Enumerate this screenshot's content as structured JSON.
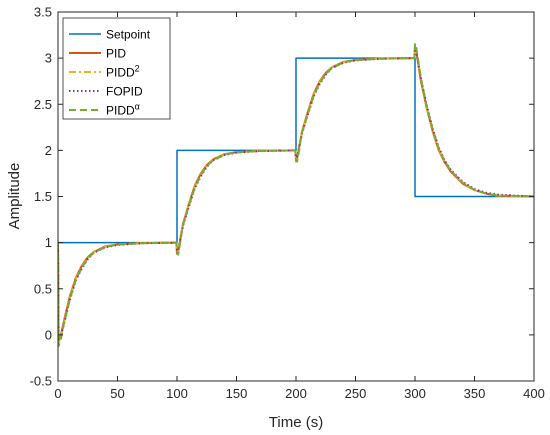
{
  "chart_data": {
    "type": "line",
    "xlabel": "Time (s)",
    "ylabel": "Amplitude",
    "xlim": [
      0,
      400
    ],
    "ylim": [
      -0.5,
      3.5
    ],
    "xticks": [
      0,
      50,
      100,
      150,
      200,
      250,
      300,
      350,
      400
    ],
    "yticks": [
      -0.5,
      0,
      0.5,
      1,
      1.5,
      2,
      2.5,
      3,
      3.5
    ],
    "xtick_labels": [
      "0",
      "50",
      "100",
      "150",
      "200",
      "250",
      "300",
      "350",
      "400"
    ],
    "ytick_labels": [
      "-0.5",
      "0",
      "0.5",
      "1",
      "1.5",
      "2",
      "2.5",
      "3",
      "3.5"
    ],
    "grid": false,
    "legend_position": "top-left",
    "series": [
      {
        "name": "Setpoint",
        "legend_main": "Setpoint",
        "legend_sup": "",
        "color": "#0072BD",
        "dash": "solid",
        "points": [
          [
            0,
            0
          ],
          [
            0,
            1
          ],
          [
            100,
            1
          ],
          [
            100,
            2
          ],
          [
            200,
            2
          ],
          [
            200,
            3
          ],
          [
            300,
            3
          ],
          [
            300,
            1.5
          ],
          [
            400,
            1.5
          ]
        ]
      },
      {
        "name": "PID",
        "legend_main": "PID",
        "legend_sup": "",
        "color": "#D95319",
        "dash": "solid",
        "points": [
          [
            0,
            1
          ],
          [
            0.5,
            -0.05
          ],
          [
            2,
            -0.03
          ],
          [
            5,
            0.15
          ],
          [
            10,
            0.42
          ],
          [
            15,
            0.62
          ],
          [
            20,
            0.75
          ],
          [
            25,
            0.84
          ],
          [
            30,
            0.9
          ],
          [
            40,
            0.96
          ],
          [
            50,
            0.98
          ],
          [
            70,
            0.995
          ],
          [
            99.5,
            1.0
          ],
          [
            100,
            0.88
          ],
          [
            101,
            0.9
          ],
          [
            105,
            1.2
          ],
          [
            110,
            1.42
          ],
          [
            115,
            1.62
          ],
          [
            120,
            1.75
          ],
          [
            125,
            1.84
          ],
          [
            130,
            1.9
          ],
          [
            140,
            1.96
          ],
          [
            150,
            1.98
          ],
          [
            170,
            1.995
          ],
          [
            199.5,
            2.0
          ],
          [
            200,
            1.9
          ],
          [
            201,
            1.92
          ],
          [
            205,
            2.2
          ],
          [
            210,
            2.42
          ],
          [
            215,
            2.62
          ],
          [
            220,
            2.75
          ],
          [
            225,
            2.84
          ],
          [
            230,
            2.9
          ],
          [
            240,
            2.96
          ],
          [
            250,
            2.98
          ],
          [
            270,
            2.995
          ],
          [
            299.5,
            3.0
          ],
          [
            300,
            3.12
          ],
          [
            301,
            3.08
          ],
          [
            305,
            2.75
          ],
          [
            310,
            2.45
          ],
          [
            315,
            2.2
          ],
          [
            320,
            2.0
          ],
          [
            325,
            1.87
          ],
          [
            330,
            1.77
          ],
          [
            340,
            1.64
          ],
          [
            350,
            1.57
          ],
          [
            360,
            1.53
          ],
          [
            370,
            1.51
          ],
          [
            400,
            1.5
          ]
        ]
      },
      {
        "name": "PIDD2",
        "legend_main": "PIDD",
        "legend_sup": "2",
        "color": "#EDB120",
        "dash": "dashdot",
        "points": [
          [
            0,
            1
          ],
          [
            0.5,
            -0.08
          ],
          [
            2,
            -0.05
          ],
          [
            5,
            0.13
          ],
          [
            10,
            0.4
          ],
          [
            15,
            0.61
          ],
          [
            20,
            0.74
          ],
          [
            25,
            0.83
          ],
          [
            30,
            0.9
          ],
          [
            40,
            0.955
          ],
          [
            50,
            0.98
          ],
          [
            70,
            0.995
          ],
          [
            99.5,
            1.0
          ],
          [
            100,
            0.9
          ],
          [
            101,
            0.88
          ],
          [
            105,
            1.19
          ],
          [
            110,
            1.41
          ],
          [
            115,
            1.61
          ],
          [
            120,
            1.74
          ],
          [
            125,
            1.83
          ],
          [
            130,
            1.9
          ],
          [
            140,
            1.955
          ],
          [
            150,
            1.98
          ],
          [
            170,
            1.995
          ],
          [
            199.5,
            2.0
          ],
          [
            200,
            1.9
          ],
          [
            201,
            1.9
          ],
          [
            205,
            2.19
          ],
          [
            210,
            2.41
          ],
          [
            215,
            2.61
          ],
          [
            220,
            2.74
          ],
          [
            225,
            2.83
          ],
          [
            230,
            2.9
          ],
          [
            240,
            2.955
          ],
          [
            250,
            2.98
          ],
          [
            270,
            2.995
          ],
          [
            299.5,
            3.0
          ],
          [
            300,
            3.14
          ],
          [
            301,
            3.1
          ],
          [
            305,
            2.77
          ],
          [
            310,
            2.46
          ],
          [
            315,
            2.21
          ],
          [
            320,
            2.01
          ],
          [
            325,
            1.88
          ],
          [
            330,
            1.78
          ],
          [
            340,
            1.65
          ],
          [
            350,
            1.57
          ],
          [
            360,
            1.53
          ],
          [
            370,
            1.51
          ],
          [
            400,
            1.5
          ]
        ]
      },
      {
        "name": "FOPID",
        "legend_main": "FOPID",
        "legend_sup": "",
        "color": "#7E2F8E",
        "dash": "dotted",
        "points": [
          [
            0,
            1
          ],
          [
            0.5,
            -0.06
          ],
          [
            2,
            -0.04
          ],
          [
            5,
            0.12
          ],
          [
            10,
            0.38
          ],
          [
            15,
            0.59
          ],
          [
            20,
            0.72
          ],
          [
            25,
            0.82
          ],
          [
            30,
            0.89
          ],
          [
            40,
            0.95
          ],
          [
            50,
            0.975
          ],
          [
            70,
            0.993
          ],
          [
            99.5,
            1.0
          ],
          [
            100,
            0.92
          ],
          [
            101,
            0.92
          ],
          [
            105,
            1.18
          ],
          [
            110,
            1.39
          ],
          [
            115,
            1.59
          ],
          [
            120,
            1.72
          ],
          [
            125,
            1.82
          ],
          [
            130,
            1.89
          ],
          [
            140,
            1.95
          ],
          [
            150,
            1.975
          ],
          [
            170,
            1.993
          ],
          [
            199.5,
            2.0
          ],
          [
            200,
            1.92
          ],
          [
            201,
            1.93
          ],
          [
            205,
            2.18
          ],
          [
            210,
            2.39
          ],
          [
            215,
            2.59
          ],
          [
            220,
            2.72
          ],
          [
            225,
            2.82
          ],
          [
            230,
            2.89
          ],
          [
            240,
            2.95
          ],
          [
            250,
            2.975
          ],
          [
            270,
            2.993
          ],
          [
            299.5,
            3.0
          ],
          [
            300,
            3.1
          ],
          [
            301,
            3.07
          ],
          [
            305,
            2.78
          ],
          [
            310,
            2.48
          ],
          [
            315,
            2.23
          ],
          [
            320,
            2.03
          ],
          [
            325,
            1.89
          ],
          [
            330,
            1.79
          ],
          [
            340,
            1.66
          ],
          [
            350,
            1.58
          ],
          [
            360,
            1.54
          ],
          [
            370,
            1.52
          ],
          [
            400,
            1.5
          ]
        ]
      },
      {
        "name": "PIDDα",
        "legend_main": "PIDD",
        "legend_sup": "α",
        "color": "#77AC30",
        "dash": "dashed",
        "points": [
          [
            0,
            1
          ],
          [
            0.5,
            -0.12
          ],
          [
            2,
            -0.07
          ],
          [
            5,
            0.12
          ],
          [
            10,
            0.39
          ],
          [
            15,
            0.6
          ],
          [
            20,
            0.73
          ],
          [
            25,
            0.83
          ],
          [
            30,
            0.89
          ],
          [
            40,
            0.955
          ],
          [
            50,
            0.978
          ],
          [
            70,
            0.994
          ],
          [
            99.5,
            1.0
          ],
          [
            100,
            0.9
          ],
          [
            101,
            0.87
          ],
          [
            105,
            1.19
          ],
          [
            110,
            1.4
          ],
          [
            115,
            1.6
          ],
          [
            120,
            1.73
          ],
          [
            125,
            1.83
          ],
          [
            130,
            1.89
          ],
          [
            140,
            1.955
          ],
          [
            150,
            1.978
          ],
          [
            170,
            1.994
          ],
          [
            199.5,
            2.0
          ],
          [
            200,
            1.88
          ],
          [
            201,
            1.88
          ],
          [
            205,
            2.19
          ],
          [
            210,
            2.4
          ],
          [
            215,
            2.6
          ],
          [
            220,
            2.73
          ],
          [
            225,
            2.83
          ],
          [
            230,
            2.89
          ],
          [
            240,
            2.955
          ],
          [
            250,
            2.978
          ],
          [
            270,
            2.994
          ],
          [
            299.5,
            3.0
          ],
          [
            300,
            3.16
          ],
          [
            301,
            3.12
          ],
          [
            305,
            2.78
          ],
          [
            310,
            2.47
          ],
          [
            315,
            2.22
          ],
          [
            320,
            2.02
          ],
          [
            325,
            1.88
          ],
          [
            330,
            1.78
          ],
          [
            340,
            1.65
          ],
          [
            350,
            1.57
          ],
          [
            360,
            1.53
          ],
          [
            370,
            1.51
          ],
          [
            400,
            1.5
          ]
        ]
      }
    ]
  }
}
